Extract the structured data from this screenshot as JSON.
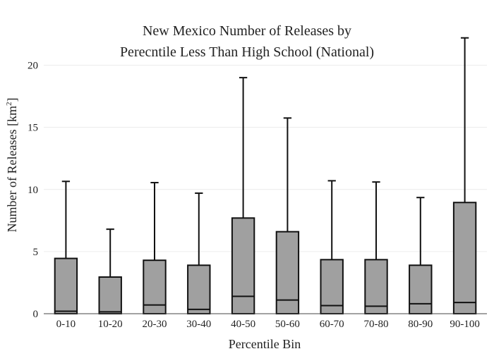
{
  "chart_data": {
    "type": "box",
    "title_lines": [
      "New Mexico Number of Releases by",
      "Perecntile Less Than High School (National)"
    ],
    "xlabel": "Percentile Bin",
    "ylabel_main": "Number of Releases  [km",
    "ylabel_sup": "2",
    "ylabel_close": "]",
    "categories": [
      "0-10",
      "10-20",
      "20-30",
      "30-40",
      "40-50",
      "50-60",
      "60-70",
      "70-80",
      "80-90",
      "90-100"
    ],
    "ylim": [
      0,
      24
    ],
    "yticks": [
      0,
      5,
      10,
      15,
      20
    ],
    "grid": true,
    "box_color": "#a0a0a0",
    "boxes": [
      {
        "min": 0,
        "q1": 0,
        "median": 0.2,
        "q3": 4.45,
        "max": 10.65
      },
      {
        "min": 0,
        "q1": 0,
        "median": 0.15,
        "q3": 2.95,
        "max": 6.8
      },
      {
        "min": 0,
        "q1": 0,
        "median": 0.7,
        "q3": 4.3,
        "max": 10.55
      },
      {
        "min": 0,
        "q1": 0,
        "median": 0.35,
        "q3": 3.9,
        "max": 9.7
      },
      {
        "min": 0,
        "q1": 0,
        "median": 1.4,
        "q3": 7.7,
        "max": 19.0
      },
      {
        "min": 0,
        "q1": 0,
        "median": 1.1,
        "q3": 6.6,
        "max": 15.75
      },
      {
        "min": 0,
        "q1": 0,
        "median": 0.65,
        "q3": 4.35,
        "max": 10.7
      },
      {
        "min": 0,
        "q1": 0,
        "median": 0.6,
        "q3": 4.35,
        "max": 10.6
      },
      {
        "min": 0,
        "q1": 0,
        "median": 0.8,
        "q3": 3.9,
        "max": 9.35
      },
      {
        "min": 0,
        "q1": 0,
        "median": 0.9,
        "q3": 8.95,
        "max": 22.2
      }
    ]
  }
}
